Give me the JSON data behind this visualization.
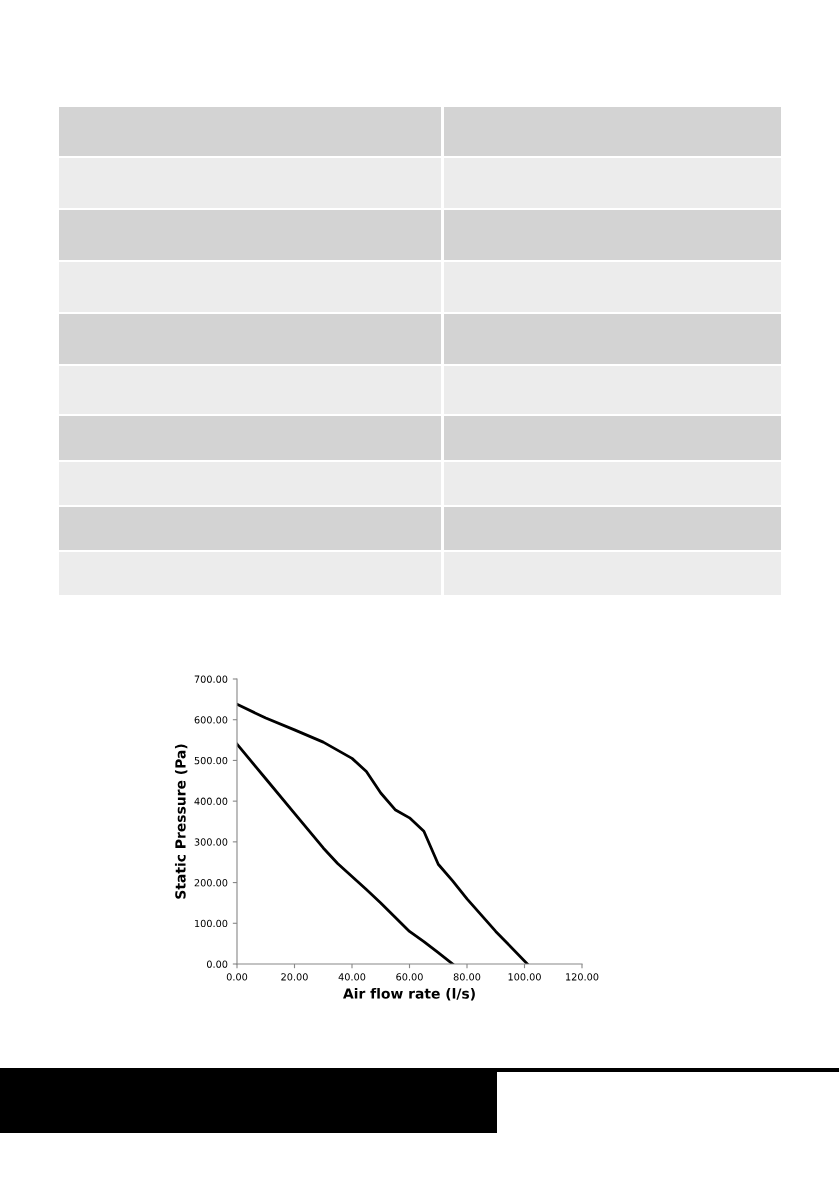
{
  "chart_data": {
    "type": "line",
    "xlabel": "Air flow rate (l/s)",
    "ylabel": "Static Pressure (Pa)",
    "xlim": [
      0,
      120
    ],
    "ylim": [
      0,
      700
    ],
    "xticks": [
      {
        "value": 0,
        "label": "0.00"
      },
      {
        "value": 20,
        "label": "20.00"
      },
      {
        "value": 40,
        "label": "40.00"
      },
      {
        "value": 60,
        "label": "60.00"
      },
      {
        "value": 80,
        "label": "80.00"
      },
      {
        "value": 100,
        "label": "100.00"
      },
      {
        "value": 120,
        "label": "120.00"
      }
    ],
    "yticks": [
      {
        "value": 0,
        "label": "0.00"
      },
      {
        "value": 100,
        "label": "100.00"
      },
      {
        "value": 200,
        "label": "200.00"
      },
      {
        "value": 300,
        "label": "300.00"
      },
      {
        "value": 400,
        "label": "400.00"
      },
      {
        "value": 500,
        "label": "500.00"
      },
      {
        "value": 600,
        "label": "600.00"
      },
      {
        "value": 700,
        "label": "700.00"
      }
    ],
    "grid": false,
    "marker": "none",
    "line_style": "solid",
    "series": [
      {
        "color": "#000000",
        "x": [
          0,
          10,
          20,
          30,
          40,
          45,
          50,
          55,
          60,
          65,
          70,
          75,
          80,
          90,
          101
        ],
        "values": [
          638,
          604,
          575,
          545,
          505,
          473,
          420,
          379,
          359,
          326,
          245,
          204,
          160,
          80,
          0
        ]
      },
      {
        "color": "#000000",
        "x": [
          0,
          10,
          20,
          30,
          35,
          40,
          45,
          50,
          55,
          60,
          65,
          70,
          75
        ],
        "values": [
          540,
          455,
          370,
          285,
          247,
          215,
          183,
          150,
          115,
          80,
          55,
          28,
          0
        ]
      }
    ]
  }
}
